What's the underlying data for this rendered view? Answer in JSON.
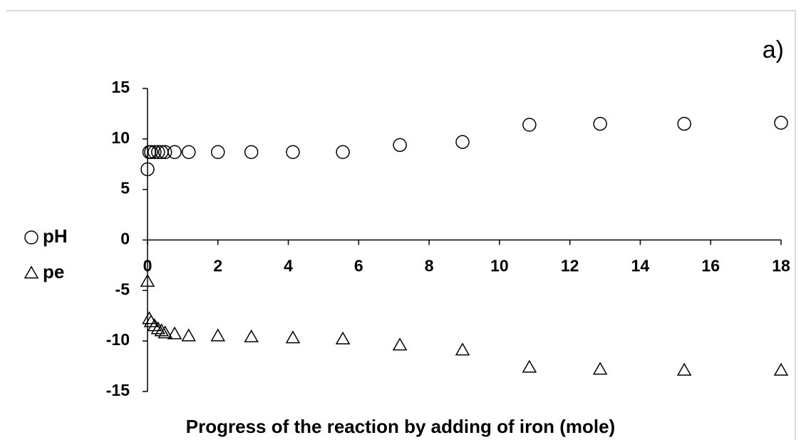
{
  "chart_data": {
    "type": "scatter",
    "annotation": "a)",
    "x_label": "Progress of the reaction by adding of iron (mole)",
    "xlim": [
      0,
      18
    ],
    "xticks": [
      0,
      2,
      4,
      6,
      8,
      10,
      12,
      14,
      16,
      18
    ],
    "ylim": [
      -15,
      15
    ],
    "yticks": [
      -15,
      -10,
      -5,
      0,
      5,
      10,
      15
    ],
    "legend": "left",
    "x": [
      0,
      0.05,
      0.1,
      0.2,
      0.3,
      0.4,
      0.5,
      0.77,
      1.17,
      2.0,
      2.95,
      4.13,
      5.55,
      7.17,
      8.95,
      10.85,
      12.86,
      15.25,
      18
    ],
    "series": [
      {
        "name": "pH",
        "marker": "circle",
        "color": "#000000",
        "values": [
          7.0,
          8.7,
          8.7,
          8.7,
          8.7,
          8.7,
          8.7,
          8.7,
          8.7,
          8.7,
          8.7,
          8.7,
          8.7,
          9.4,
          9.7,
          11.4,
          11.5,
          11.5,
          11.6
        ]
      },
      {
        "name": "pe",
        "marker": "triangle",
        "color": "#000000",
        "values": [
          -4.1,
          -7.8,
          -8.1,
          -8.5,
          -8.8,
          -9.0,
          -9.2,
          -9.3,
          -9.5,
          -9.5,
          -9.6,
          -9.7,
          -9.8,
          -10.4,
          -10.9,
          -12.6,
          -12.8,
          -12.9,
          -12.9
        ]
      }
    ]
  }
}
